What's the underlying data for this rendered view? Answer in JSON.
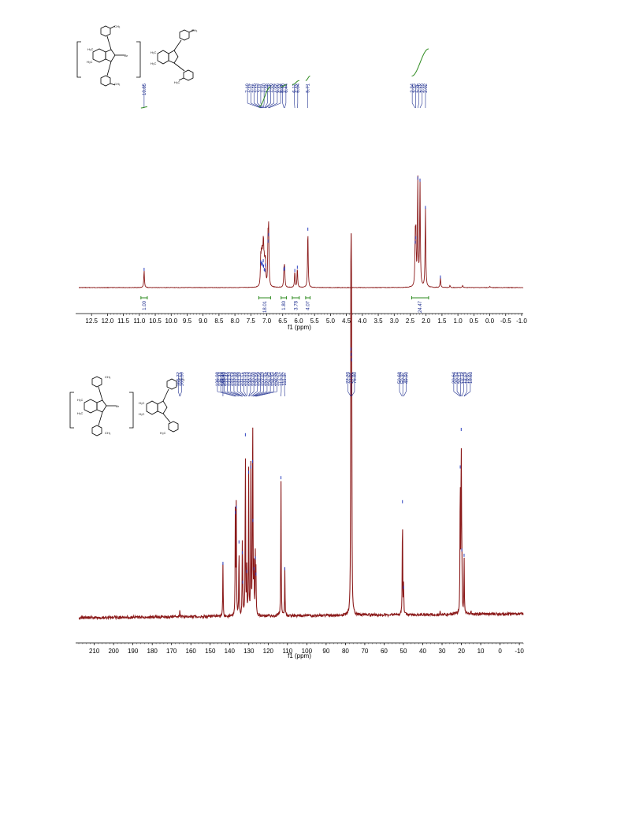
{
  "chart_data": [
    {
      "type": "line",
      "xlabel": "f1 (ppm)",
      "xlim": [
        12.9,
        -1.05
      ],
      "x_ticks": [
        "12.5",
        "12.0",
        "11.5",
        "11.0",
        "10.5",
        "10.0",
        "9.5",
        "9.0",
        "8.5",
        "8.0",
        "7.5",
        "7.0",
        "6.5",
        "6.0",
        "5.5",
        "5.0",
        "4.5",
        "4.0",
        "3.5",
        "3.0",
        "2.5",
        "2.0",
        "1.5",
        "1.0",
        "0.5",
        "0.0",
        "-0.5",
        "-1.0"
      ],
      "x_tick_values": [
        12.5,
        12.0,
        11.5,
        11.0,
        10.5,
        10.0,
        9.5,
        9.0,
        8.5,
        8.0,
        7.5,
        7.0,
        6.5,
        6.0,
        5.5,
        5.0,
        4.5,
        4.0,
        3.5,
        3.0,
        2.5,
        2.0,
        1.5,
        1.0,
        0.5,
        0.0,
        -0.5,
        -1.0
      ],
      "peak_labels": [
        "10.85",
        "7.19",
        "7.17",
        "7.15",
        "7.13",
        "7.11",
        "7.10",
        "7.08",
        "7.06",
        "7.04",
        "6.96",
        "6.94",
        "6.46",
        "6.44",
        "6.12",
        "6.04",
        "5.71",
        "2.34",
        "2.32",
        "2.26",
        "2.19",
        "2.02"
      ],
      "peak_label_values": [
        10.85,
        7.19,
        7.17,
        7.15,
        7.13,
        7.11,
        7.1,
        7.08,
        7.06,
        7.04,
        6.96,
        6.94,
        6.46,
        6.44,
        6.12,
        6.04,
        5.71,
        2.34,
        2.32,
        2.26,
        2.19,
        2.02
      ],
      "peaks": {
        "x": [
          10.85,
          7.19,
          7.17,
          7.15,
          7.13,
          7.11,
          7.1,
          7.08,
          7.06,
          7.04,
          6.96,
          6.94,
          6.46,
          6.44,
          6.12,
          6.04,
          5.71,
          2.34,
          2.32,
          2.26,
          2.19,
          2.02,
          1.55,
          1.25,
          0.85,
          0.0
        ],
        "y": [
          0.16,
          0.23,
          0.21,
          0.22,
          0.2,
          0.24,
          0.19,
          0.16,
          0.15,
          0.2,
          0.42,
          0.48,
          0.16,
          0.17,
          0.15,
          0.18,
          0.53,
          0.41,
          0.45,
          1.0,
          0.98,
          0.73,
          0.09,
          0.02,
          0.02,
          0.01
        ]
      },
      "integrals": [
        {
          "label": "1.00",
          "from": 10.95,
          "to": 10.75
        },
        {
          "label": "18.01",
          "from": 7.25,
          "to": 6.88
        },
        {
          "label": "1.80",
          "from": 6.55,
          "to": 6.38
        },
        {
          "label": "3.78",
          "from": 6.2,
          "to": 5.98
        },
        {
          "label": "4.07",
          "from": 5.78,
          "to": 5.64
        },
        {
          "label": "24.47",
          "from": 2.45,
          "to": 1.92
        }
      ],
      "colors": {
        "spectrum": "#8b1a1a",
        "labels": "#1f2f8f",
        "integral": "#2e8b1f"
      }
    },
    {
      "type": "line",
      "xlabel": "f1 (ppm)",
      "xlim": [
        218,
        -12
      ],
      "x_ticks": [
        "210",
        "200",
        "190",
        "180",
        "170",
        "160",
        "150",
        "140",
        "130",
        "120",
        "110",
        "100",
        "90",
        "80",
        "70",
        "60",
        "50",
        "40",
        "30",
        "20",
        "10",
        "0",
        "-10"
      ],
      "x_tick_values": [
        210,
        200,
        190,
        180,
        170,
        160,
        150,
        140,
        130,
        120,
        110,
        100,
        90,
        80,
        70,
        60,
        50,
        40,
        30,
        20,
        10,
        0,
        -10
      ],
      "peak_labels": [
        "165.72",
        "165.59",
        "143.40",
        "136.98",
        "136.49",
        "135.10",
        "133.45",
        "133.23",
        "133.18",
        "131.86",
        "131.77",
        "131.15",
        "131.13",
        "130.12",
        "130.00",
        "128.95",
        "128.06",
        "127.92",
        "127.34",
        "126.64",
        "126.32",
        "126.29",
        "113.37",
        "111.37",
        "77.23",
        "77.01",
        "76.80",
        "50.68",
        "50.37",
        "49.90",
        "20.64",
        "20.14",
        "20.13",
        "19.76",
        "18.67",
        "18.63"
      ],
      "peak_label_values": [
        165.72,
        165.59,
        143.4,
        136.98,
        136.49,
        135.1,
        133.45,
        133.23,
        133.18,
        131.86,
        131.77,
        131.15,
        131.13,
        130.12,
        130.0,
        128.95,
        128.06,
        127.92,
        127.34,
        126.64,
        126.32,
        126.29,
        113.37,
        111.37,
        77.23,
        77.01,
        76.8,
        50.68,
        50.37,
        49.9,
        20.64,
        20.14,
        20.13,
        19.76,
        18.67,
        18.63
      ],
      "peaks": {
        "x": [
          165.7,
          143.4,
          137.0,
          136.5,
          135.1,
          133.4,
          133.2,
          131.8,
          131.1,
          130.1,
          128.95,
          128.06,
          127.92,
          127.34,
          126.64,
          126.32,
          113.37,
          111.37,
          77.2,
          77.0,
          76.8,
          50.5,
          49.9,
          31.0,
          20.6,
          20.1,
          19.8,
          18.6,
          15.0
        ],
        "y": [
          0.03,
          0.2,
          0.39,
          0.41,
          0.28,
          0.24,
          0.13,
          0.68,
          0.17,
          0.54,
          0.56,
          0.58,
          0.36,
          0.18,
          0.22,
          0.16,
          0.52,
          0.18,
          1.0,
          0.98,
          0.96,
          0.43,
          0.11,
          0.02,
          0.56,
          0.7,
          0.25,
          0.23,
          0.02
        ]
      },
      "colors": {
        "spectrum": "#8b1a1a",
        "labels": "#1f2f8f"
      }
    }
  ]
}
